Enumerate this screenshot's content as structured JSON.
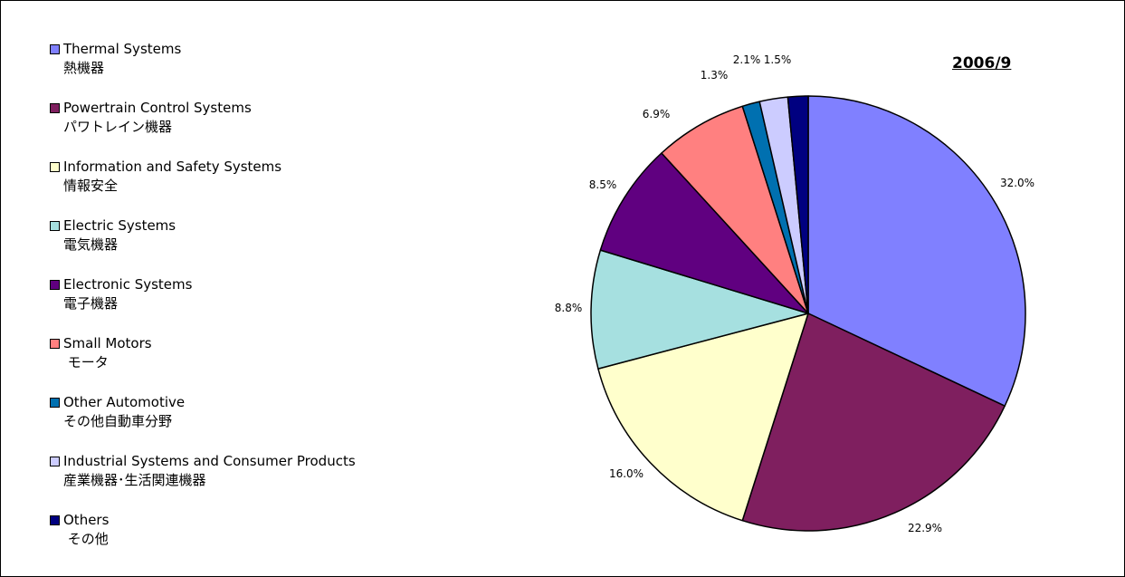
{
  "chart_data": {
    "type": "pie",
    "title": "2006/9",
    "legend_position": "left",
    "start_angle_deg": 0,
    "direction": "clockwise",
    "slices": [
      {
        "label_en": "Thermal Systems",
        "label_ja": "熱機器",
        "value": 32.0,
        "value_label": "32.0%",
        "color": "#8080ff"
      },
      {
        "label_en": "Powertrain Control Systems",
        "label_ja": "パワトレイン機器",
        "value": 22.9,
        "value_label": "22.9%",
        "color": "#7f1f5f"
      },
      {
        "label_en": "Information and Safety Systems",
        "label_ja": "情報安全",
        "value": 16.0,
        "value_label": "16.0%",
        "color": "#ffffcc"
      },
      {
        "label_en": "Electric Systems",
        "label_ja": "電気機器",
        "value": 8.8,
        "value_label": "8.8%",
        "color": "#a6e0e0"
      },
      {
        "label_en": "Electronic Systems",
        "label_ja": "電子機器",
        "value": 8.5,
        "value_label": "8.5%",
        "color": "#600080"
      },
      {
        "label_en": "Small Motors",
        "label_ja": " モータ",
        "value": 6.9,
        "value_label": "6.9%",
        "color": "#ff8080"
      },
      {
        "label_en": "Other Automotive",
        "label_ja": "その他自動車分野",
        "value": 1.3,
        "value_label": "1.3%",
        "color": "#0070b0"
      },
      {
        "label_en": "Industrial Systems and Consumer Products",
        "label_ja": "産業機器･生活関連機器",
        "value": 2.1,
        "value_label": "2.1%",
        "color": "#ccccff"
      },
      {
        "label_en": "Others",
        "label_ja": " その他",
        "value": 1.5,
        "value_label": "1.5%",
        "color": "#000080"
      }
    ]
  }
}
